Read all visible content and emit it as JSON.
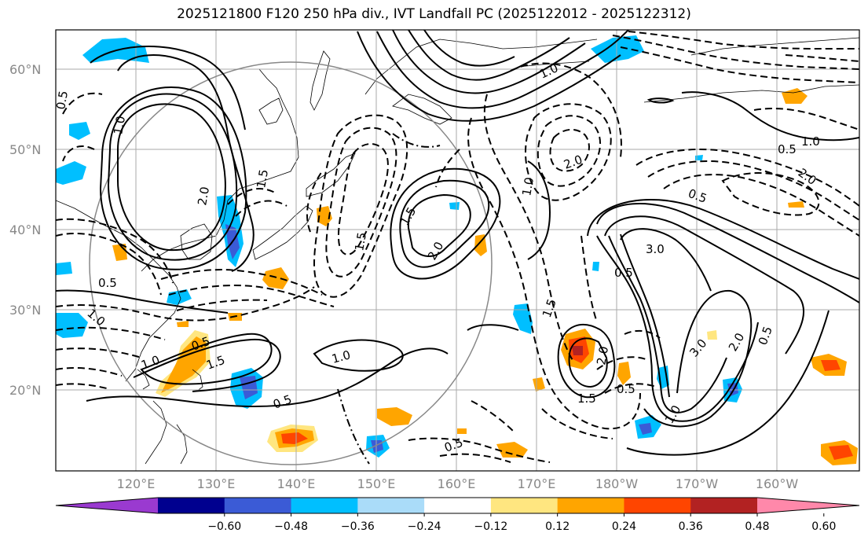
{
  "title": "2025121800 F120 250 hPa div., IVT Landfall PC (2025122012 - 2025122312)",
  "map": {
    "lat_labels": [
      "60°N",
      "50°N",
      "40°N",
      "30°N",
      "20°N"
    ],
    "lon_labels": [
      "120°E",
      "130°E",
      "140°E",
      "150°E",
      "160°E",
      "170°E",
      "180°W",
      "170°W",
      "160°W"
    ],
    "contour_labels": [
      "0.5",
      "1.0",
      "2.0",
      "1.5",
      "2.0",
      "0.5",
      "1.0",
      "1.5",
      "1.0",
      "0.5",
      "1.5",
      "2.0",
      "1.0",
      "1.5",
      "3.0",
      "0.5",
      "1.0",
      "2.0",
      "3.0",
      "1.5",
      "0.5",
      "1.0",
      "2.0",
      "0.5",
      "1.5",
      "0.5",
      "2.0",
      "0.5",
      "0.5",
      "1.0",
      "2.0",
      "1.0",
      "0.5"
    ]
  },
  "colorbar": {
    "colors": [
      "#9a3ad0",
      "#00008f",
      "#3b5bd6",
      "#00bfff",
      "#aadcf9",
      "#ffffff",
      "#ffe680",
      "#ffa500",
      "#ff4500",
      "#b22222",
      "#ff88aa"
    ],
    "ticks": [
      "−0.60",
      "−0.48",
      "−0.36",
      "−0.24",
      "−0.12",
      "0.12",
      "0.24",
      "0.36",
      "0.48",
      "0.60"
    ]
  }
}
